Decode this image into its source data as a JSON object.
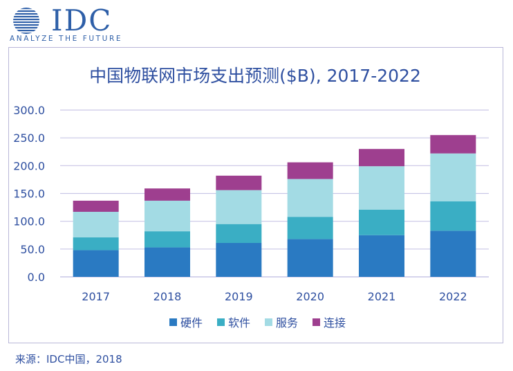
{
  "logo": {
    "brand": "IDC",
    "tagline": "ANALYZE THE FUTURE"
  },
  "source": "来源：IDC中国，2018",
  "colors": {
    "hardware": "#2a7ac2",
    "software": "#3aaec4",
    "services": "#a3dbe4",
    "connectivity": "#9e3f8f",
    "title": "#2e4fa0",
    "axis_text": "#2e4fa0",
    "grid": "#c9c6e6",
    "logo": "#2e5fa8"
  },
  "chart_data": {
    "type": "bar",
    "stacked": true,
    "title": "中国物联网市场支出预测($B), 2017-2022",
    "xlabel": "",
    "ylabel": "",
    "categories": [
      "2017",
      "2018",
      "2019",
      "2020",
      "2021",
      "2022"
    ],
    "ylim": [
      0,
      300
    ],
    "yticks": [
      "0.0",
      "50.0",
      "100.0",
      "150.0",
      "200.0",
      "250.0",
      "300.0"
    ],
    "grid": true,
    "legend_position": "bottom",
    "series": [
      {
        "name": "硬件",
        "key": "hardware",
        "values": [
          48,
          53,
          61,
          68,
          75,
          83
        ]
      },
      {
        "name": "软件",
        "key": "software",
        "values": [
          23,
          29,
          34,
          40,
          46,
          53
        ]
      },
      {
        "name": "服务",
        "key": "services",
        "values": [
          46,
          55,
          61,
          68,
          78,
          86
        ]
      },
      {
        "name": "连接",
        "key": "connectivity",
        "values": [
          20,
          22,
          26,
          30,
          31,
          33
        ]
      }
    ]
  }
}
